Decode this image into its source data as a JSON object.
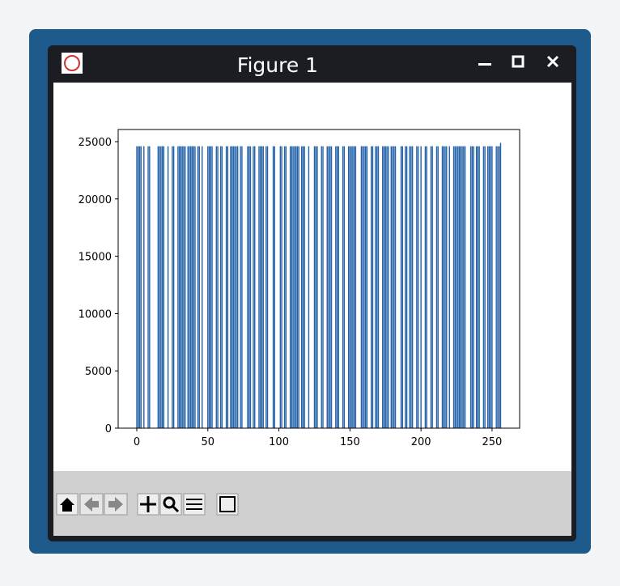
{
  "window": {
    "title": "Figure 1"
  },
  "chart_data": {
    "type": "bar",
    "color": "#2462a8",
    "x": [
      0,
      1,
      2,
      3,
      5,
      8,
      9,
      15,
      16,
      17,
      18,
      19,
      22,
      25,
      26,
      29,
      30,
      31,
      32,
      33,
      34,
      36,
      37,
      38,
      39,
      40,
      41,
      43,
      44,
      46,
      50,
      51,
      52,
      53,
      56,
      57,
      59,
      60,
      63,
      64,
      66,
      67,
      68,
      69,
      70,
      71,
      73,
      74,
      78,
      79,
      80,
      82,
      83,
      86,
      87,
      88,
      89,
      91,
      92,
      96,
      97,
      101,
      102,
      104,
      105,
      108,
      109,
      110,
      111,
      112,
      113,
      114,
      116,
      117,
      118,
      121,
      125,
      126,
      127,
      130,
      131,
      134,
      135,
      136,
      137,
      140,
      141,
      142,
      145,
      146,
      149,
      150,
      151,
      152,
      153,
      154,
      158,
      159,
      160,
      161,
      162,
      165,
      166,
      168,
      169,
      170,
      173,
      174,
      175,
      176,
      177,
      179,
      180,
      181,
      182,
      186,
      187,
      189,
      190,
      192,
      193,
      194,
      197,
      198,
      200,
      203,
      204,
      207,
      208,
      211,
      212,
      215,
      216,
      217,
      218,
      220,
      223,
      224,
      225,
      226,
      227,
      228,
      229,
      230,
      231,
      235,
      236,
      237,
      239,
      240,
      241,
      244,
      245,
      247,
      248,
      249,
      250,
      253,
      254,
      255,
      256
    ],
    "values": [
      24600,
      24600,
      24600,
      24600,
      24600,
      24600,
      24600,
      24600,
      24600,
      24600,
      24600,
      24600,
      24600,
      24600,
      24600,
      24600,
      24600,
      24600,
      24600,
      24600,
      24600,
      24600,
      24600,
      24600,
      24600,
      24600,
      24600,
      24600,
      24600,
      24600,
      24600,
      24600,
      24600,
      24600,
      24600,
      24600,
      24600,
      24600,
      24600,
      24600,
      24600,
      24600,
      24600,
      24600,
      24600,
      24600,
      24600,
      24600,
      24600,
      24600,
      24600,
      24600,
      24600,
      24600,
      24600,
      24600,
      24600,
      24600,
      24600,
      24600,
      24600,
      24600,
      24600,
      24600,
      24600,
      24600,
      24600,
      24600,
      24600,
      24600,
      24600,
      24600,
      24600,
      24600,
      24600,
      24600,
      24600,
      24600,
      24600,
      24600,
      24600,
      24600,
      24600,
      24600,
      24600,
      24600,
      24600,
      24600,
      24600,
      24600,
      24600,
      24600,
      24600,
      24600,
      24600,
      24600,
      24600,
      24600,
      24600,
      24600,
      24600,
      24600,
      24600,
      24600,
      24600,
      24600,
      24600,
      24600,
      24600,
      24600,
      24600,
      24600,
      24600,
      24600,
      24600,
      24600,
      24600,
      24600,
      24600,
      24600,
      24600,
      24600,
      24600,
      24600,
      24600,
      24600,
      24600,
      24600,
      24600,
      24600,
      24600,
      24600,
      24600,
      24600,
      24600,
      24600,
      24600,
      24600,
      24600,
      24600,
      24600,
      24600,
      24600,
      24600,
      24600,
      24600,
      24600,
      24600,
      24600,
      24600,
      24600,
      24600,
      24600,
      24600,
      24600,
      24600,
      24600,
      24600,
      24600,
      24600,
      24900
    ],
    "bar_width": 0.8,
    "xlim": [
      -13.1,
      269.4
    ],
    "ylim": [
      0,
      26060
    ],
    "xticks": [
      0,
      50,
      100,
      150,
      200,
      250
    ],
    "yticks": [
      0,
      5000,
      10000,
      15000,
      20000,
      25000
    ]
  }
}
